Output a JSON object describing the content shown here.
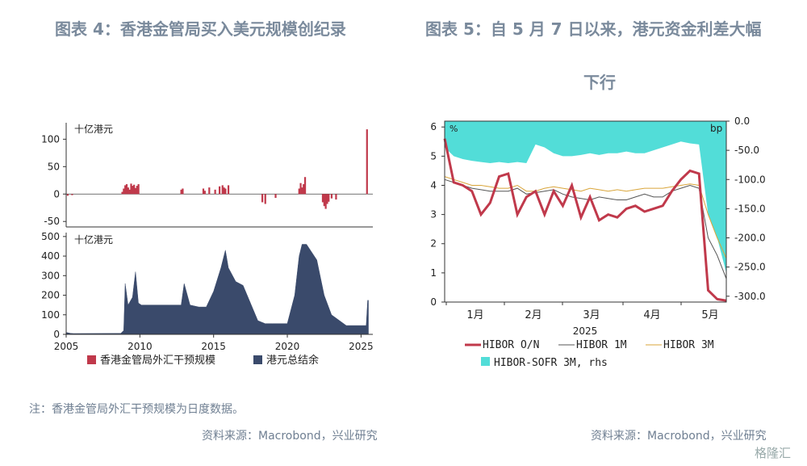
{
  "left": {
    "title": "图表 4：香港金管局买入美元规模创纪录",
    "note": "注：香港金管局外汇干预规模为日度数据。",
    "source": "资料来源：Macrobond，兴业研究"
  },
  "right": {
    "title_line1": "图表 5：自 5 月 7 日以来，港元资金利差大幅",
    "title_line2": "下行",
    "source": "资料来源：Macrobond，兴业研究"
  },
  "watermark": "格隆汇",
  "colors": {
    "red": "#c0394b",
    "navy": "#3a4a6b",
    "cyan": "#52ddd8",
    "gray": "#555555",
    "gold": "#d9a53a"
  },
  "chart_data": [
    {
      "type": "bar",
      "name": "intervention",
      "unit_label": "十亿港元",
      "xlim": [
        2005,
        2025.8
      ],
      "ylim": [
        -60,
        130
      ],
      "yticks": [
        100,
        50,
        0,
        -50
      ],
      "x": [
        2005.1,
        2005.4,
        2008.8,
        2008.9,
        2009.0,
        2009.1,
        2009.2,
        2009.3,
        2009.4,
        2009.5,
        2009.6,
        2009.7,
        2009.8,
        2009.9,
        2012.8,
        2012.9,
        2014.3,
        2014.4,
        2014.7,
        2015.1,
        2015.4,
        2015.6,
        2015.7,
        2015.8,
        2016.0,
        2018.3,
        2018.5,
        2019.2,
        2020.8,
        2020.9,
        2021.0,
        2021.1,
        2021.2,
        2022.4,
        2022.5,
        2022.6,
        2022.7,
        2022.8,
        2023.0,
        2023.3,
        2025.4
      ],
      "values": [
        -3,
        -2,
        4,
        10,
        16,
        18,
        12,
        8,
        19,
        15,
        17,
        11,
        15,
        18,
        8,
        10,
        10,
        6,
        12,
        8,
        14,
        16,
        12,
        10,
        16,
        -15,
        -18,
        -7,
        10,
        20,
        12,
        18,
        31,
        -15,
        -22,
        -27,
        -18,
        -14,
        -8,
        -10,
        118
      ],
      "legend": "香港金管局外汇干预规模"
    },
    {
      "type": "area",
      "name": "aggregate-balance",
      "unit_label": "十亿港元",
      "xlim": [
        2005,
        2025.8
      ],
      "ylim": [
        0,
        520
      ],
      "yticks": [
        500,
        400,
        300,
        200,
        100,
        0
      ],
      "xticks": [
        2005,
        2010,
        2015,
        2020,
        2025
      ],
      "x": [
        2005.0,
        2005.3,
        2005.5,
        2008.7,
        2008.9,
        2009.0,
        2009.2,
        2009.5,
        2009.7,
        2009.9,
        2010.1,
        2010.5,
        2012.0,
        2012.8,
        2013.0,
        2013.4,
        2014.0,
        2014.5,
        2015.0,
        2015.5,
        2015.8,
        2016.0,
        2016.5,
        2017.0,
        2018.0,
        2018.5,
        2019.0,
        2020.0,
        2020.5,
        2020.8,
        2021.0,
        2021.3,
        2022.0,
        2022.5,
        2023.0,
        2024.0,
        2025.0,
        2025.35,
        2025.45,
        2025.5
      ],
      "values": [
        10,
        5,
        4,
        5,
        20,
        260,
        150,
        190,
        320,
        160,
        150,
        150,
        150,
        150,
        260,
        150,
        140,
        140,
        220,
        340,
        430,
        340,
        270,
        250,
        70,
        55,
        55,
        55,
        200,
        400,
        460,
        460,
        380,
        200,
        100,
        45,
        45,
        45,
        174,
        174
      ],
      "legend": "港元总结余"
    },
    {
      "type": "line",
      "name": "hibor",
      "ylabel_left": "%",
      "ylabel_right": "bp",
      "ylim": [
        0,
        6.2
      ],
      "yticks": [
        6,
        5,
        4,
        3,
        2,
        1,
        0
      ],
      "ylim_right": [
        -310,
        0
      ],
      "yticks_right": [
        "0.0",
        "-50.0",
        "-100.0",
        "-150.0",
        "-200.0",
        "-250.0",
        "-300.0"
      ],
      "month_labels": [
        "1月",
        "2月",
        "3月",
        "4月",
        "5月"
      ],
      "xlabel": "2025",
      "x": [
        0,
        1,
        2,
        3,
        4,
        5,
        6,
        7,
        8,
        9,
        10,
        11,
        12,
        13,
        14,
        15,
        16,
        17,
        18,
        19,
        20,
        21,
        22,
        23,
        24,
        25,
        26,
        27,
        28,
        29,
        30,
        31
      ],
      "series": [
        {
          "name": "HIBOR O/N",
          "axis": "left",
          "color": "#c0394b",
          "values": [
            5.6,
            4.1,
            4.0,
            3.8,
            3.0,
            3.4,
            4.3,
            4.4,
            3.0,
            3.6,
            3.8,
            3.0,
            3.8,
            3.3,
            4.0,
            2.9,
            3.6,
            2.8,
            3.0,
            2.9,
            3.2,
            3.3,
            3.1,
            3.2,
            3.3,
            3.8,
            4.2,
            4.5,
            4.4,
            0.4,
            0.1,
            0.05
          ]
        },
        {
          "name": "HIBOR 1M",
          "axis": "left",
          "color": "#555555",
          "values": [
            4.2,
            4.1,
            4.0,
            3.9,
            3.85,
            3.8,
            3.8,
            3.8,
            3.9,
            3.7,
            3.75,
            3.8,
            3.85,
            3.7,
            3.6,
            3.55,
            3.5,
            3.6,
            3.55,
            3.5,
            3.5,
            3.6,
            3.7,
            3.6,
            3.6,
            3.8,
            3.9,
            4.0,
            3.9,
            2.2,
            1.6,
            0.8
          ]
        },
        {
          "name": "HIBOR 3M",
          "axis": "left",
          "color": "#d9a53a",
          "values": [
            4.3,
            4.2,
            4.1,
            4.0,
            4.0,
            3.95,
            3.9,
            3.9,
            4.0,
            3.8,
            3.8,
            3.9,
            3.95,
            3.9,
            3.85,
            3.8,
            3.9,
            3.85,
            3.8,
            3.85,
            3.8,
            3.85,
            3.9,
            3.9,
            3.9,
            3.95,
            4.0,
            4.05,
            4.0,
            3.0,
            2.2,
            1.5
          ]
        },
        {
          "name": "HIBOR-SOFR 3M, rhs",
          "axis": "right",
          "color": "#52ddd8",
          "type": "area",
          "values": [
            -45,
            -60,
            -65,
            -68,
            -70,
            -72,
            -70,
            -72,
            -70,
            -72,
            -40,
            -45,
            -55,
            -60,
            -60,
            -58,
            -55,
            -58,
            -55,
            -55,
            -52,
            -55,
            -55,
            -50,
            -45,
            -40,
            -35,
            -38,
            -40,
            -160,
            -200,
            -260
          ]
        }
      ]
    }
  ]
}
